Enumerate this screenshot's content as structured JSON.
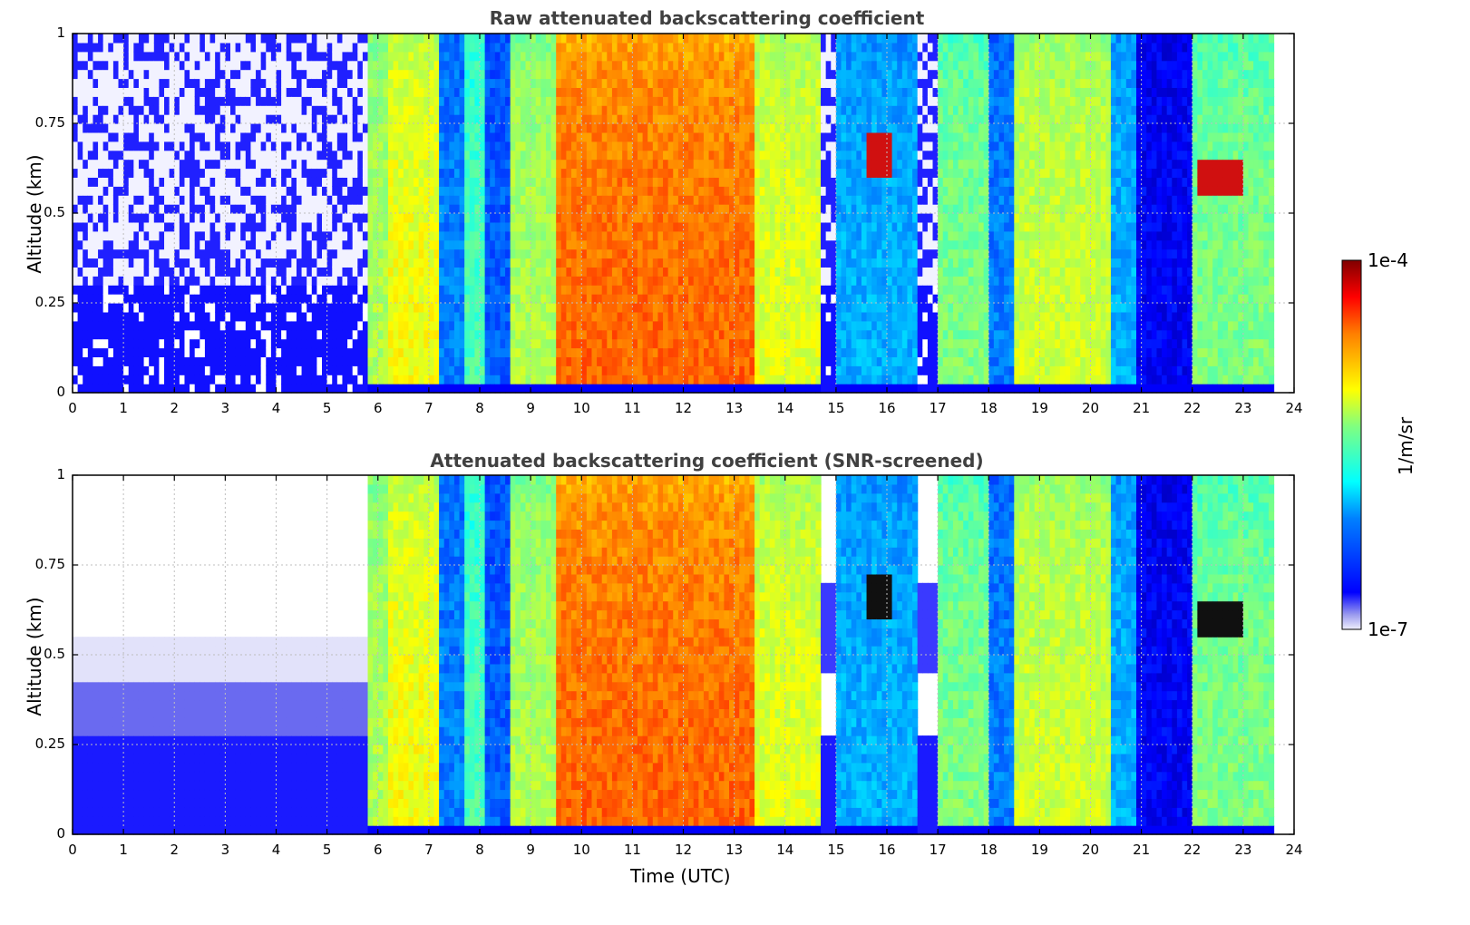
{
  "chart_data": [
    {
      "type": "heatmap",
      "title": "Raw attenuated backscattering coefficient",
      "xlabel": "",
      "ylabel": "Altitude (km)",
      "xlim": [
        0,
        24
      ],
      "ylim": [
        0,
        1
      ],
      "x_ticks": [
        "0",
        "1",
        "2",
        "3",
        "4",
        "5",
        "6",
        "7",
        "8",
        "9",
        "10",
        "11",
        "12",
        "13",
        "14",
        "15",
        "16",
        "17",
        "18",
        "19",
        "20",
        "21",
        "22",
        "23",
        "24"
      ],
      "y_ticks": [
        "0",
        "0.25",
        "0.5",
        "0.75",
        "1"
      ],
      "grid": true,
      "screened": false
    },
    {
      "type": "heatmap",
      "title": "Attenuated backscattering coefficient (SNR-screened)",
      "xlabel": "Time (UTC)",
      "ylabel": "Altitude (km)",
      "xlim": [
        0,
        24
      ],
      "ylim": [
        0,
        1
      ],
      "x_ticks": [
        "0",
        "1",
        "2",
        "3",
        "4",
        "5",
        "6",
        "7",
        "8",
        "9",
        "10",
        "11",
        "12",
        "13",
        "14",
        "15",
        "16",
        "17",
        "18",
        "19",
        "20",
        "21",
        "22",
        "23",
        "24"
      ],
      "y_ticks": [
        "0",
        "0.25",
        "0.5",
        "0.75",
        "1"
      ],
      "grid": true,
      "screened": true
    }
  ],
  "colorbar": {
    "label": "1/m/sr",
    "min_label": "1e-7",
    "max_label": "1e-4",
    "colormap": "jet",
    "scale": "log"
  },
  "profile": {
    "data_end_hour": 23.6,
    "segments": [
      {
        "t0": 0.0,
        "t1": 5.85,
        "level": 0.02
      },
      {
        "t0": 5.85,
        "t1": 6.25,
        "level": 0.55
      },
      {
        "t0": 6.25,
        "t1": 7.2,
        "level": 0.62
      },
      {
        "t0": 7.2,
        "t1": 7.7,
        "level": 0.25
      },
      {
        "t0": 7.7,
        "t1": 8.1,
        "level": 0.45
      },
      {
        "t0": 8.1,
        "t1": 8.6,
        "level": 0.22
      },
      {
        "t0": 8.6,
        "t1": 9.5,
        "level": 0.55
      },
      {
        "t0": 9.5,
        "t1": 13.4,
        "level": 0.78
      },
      {
        "t0": 13.4,
        "t1": 14.7,
        "level": 0.6
      },
      {
        "t0": 14.7,
        "t1": 15.0,
        "level": 0.05
      },
      {
        "t0": 15.0,
        "t1": 16.6,
        "level": 0.3
      },
      {
        "t0": 16.6,
        "t1": 17.0,
        "level": 0.05
      },
      {
        "t0": 17.0,
        "t1": 18.0,
        "level": 0.5
      },
      {
        "t0": 18.0,
        "t1": 18.5,
        "level": 0.25
      },
      {
        "t0": 18.5,
        "t1": 20.4,
        "level": 0.58
      },
      {
        "t0": 20.4,
        "t1": 20.9,
        "level": 0.3
      },
      {
        "t0": 20.9,
        "t1": 22.0,
        "level": 0.12
      },
      {
        "t0": 22.0,
        "t1": 23.6,
        "level": 0.5
      }
    ],
    "cloud_patches": [
      {
        "t0": 15.6,
        "t1": 16.1,
        "alt0": 0.6,
        "alt1": 0.72
      },
      {
        "t0": 22.1,
        "t1": 23.0,
        "alt0": 0.56,
        "alt1": 0.65
      }
    ]
  }
}
